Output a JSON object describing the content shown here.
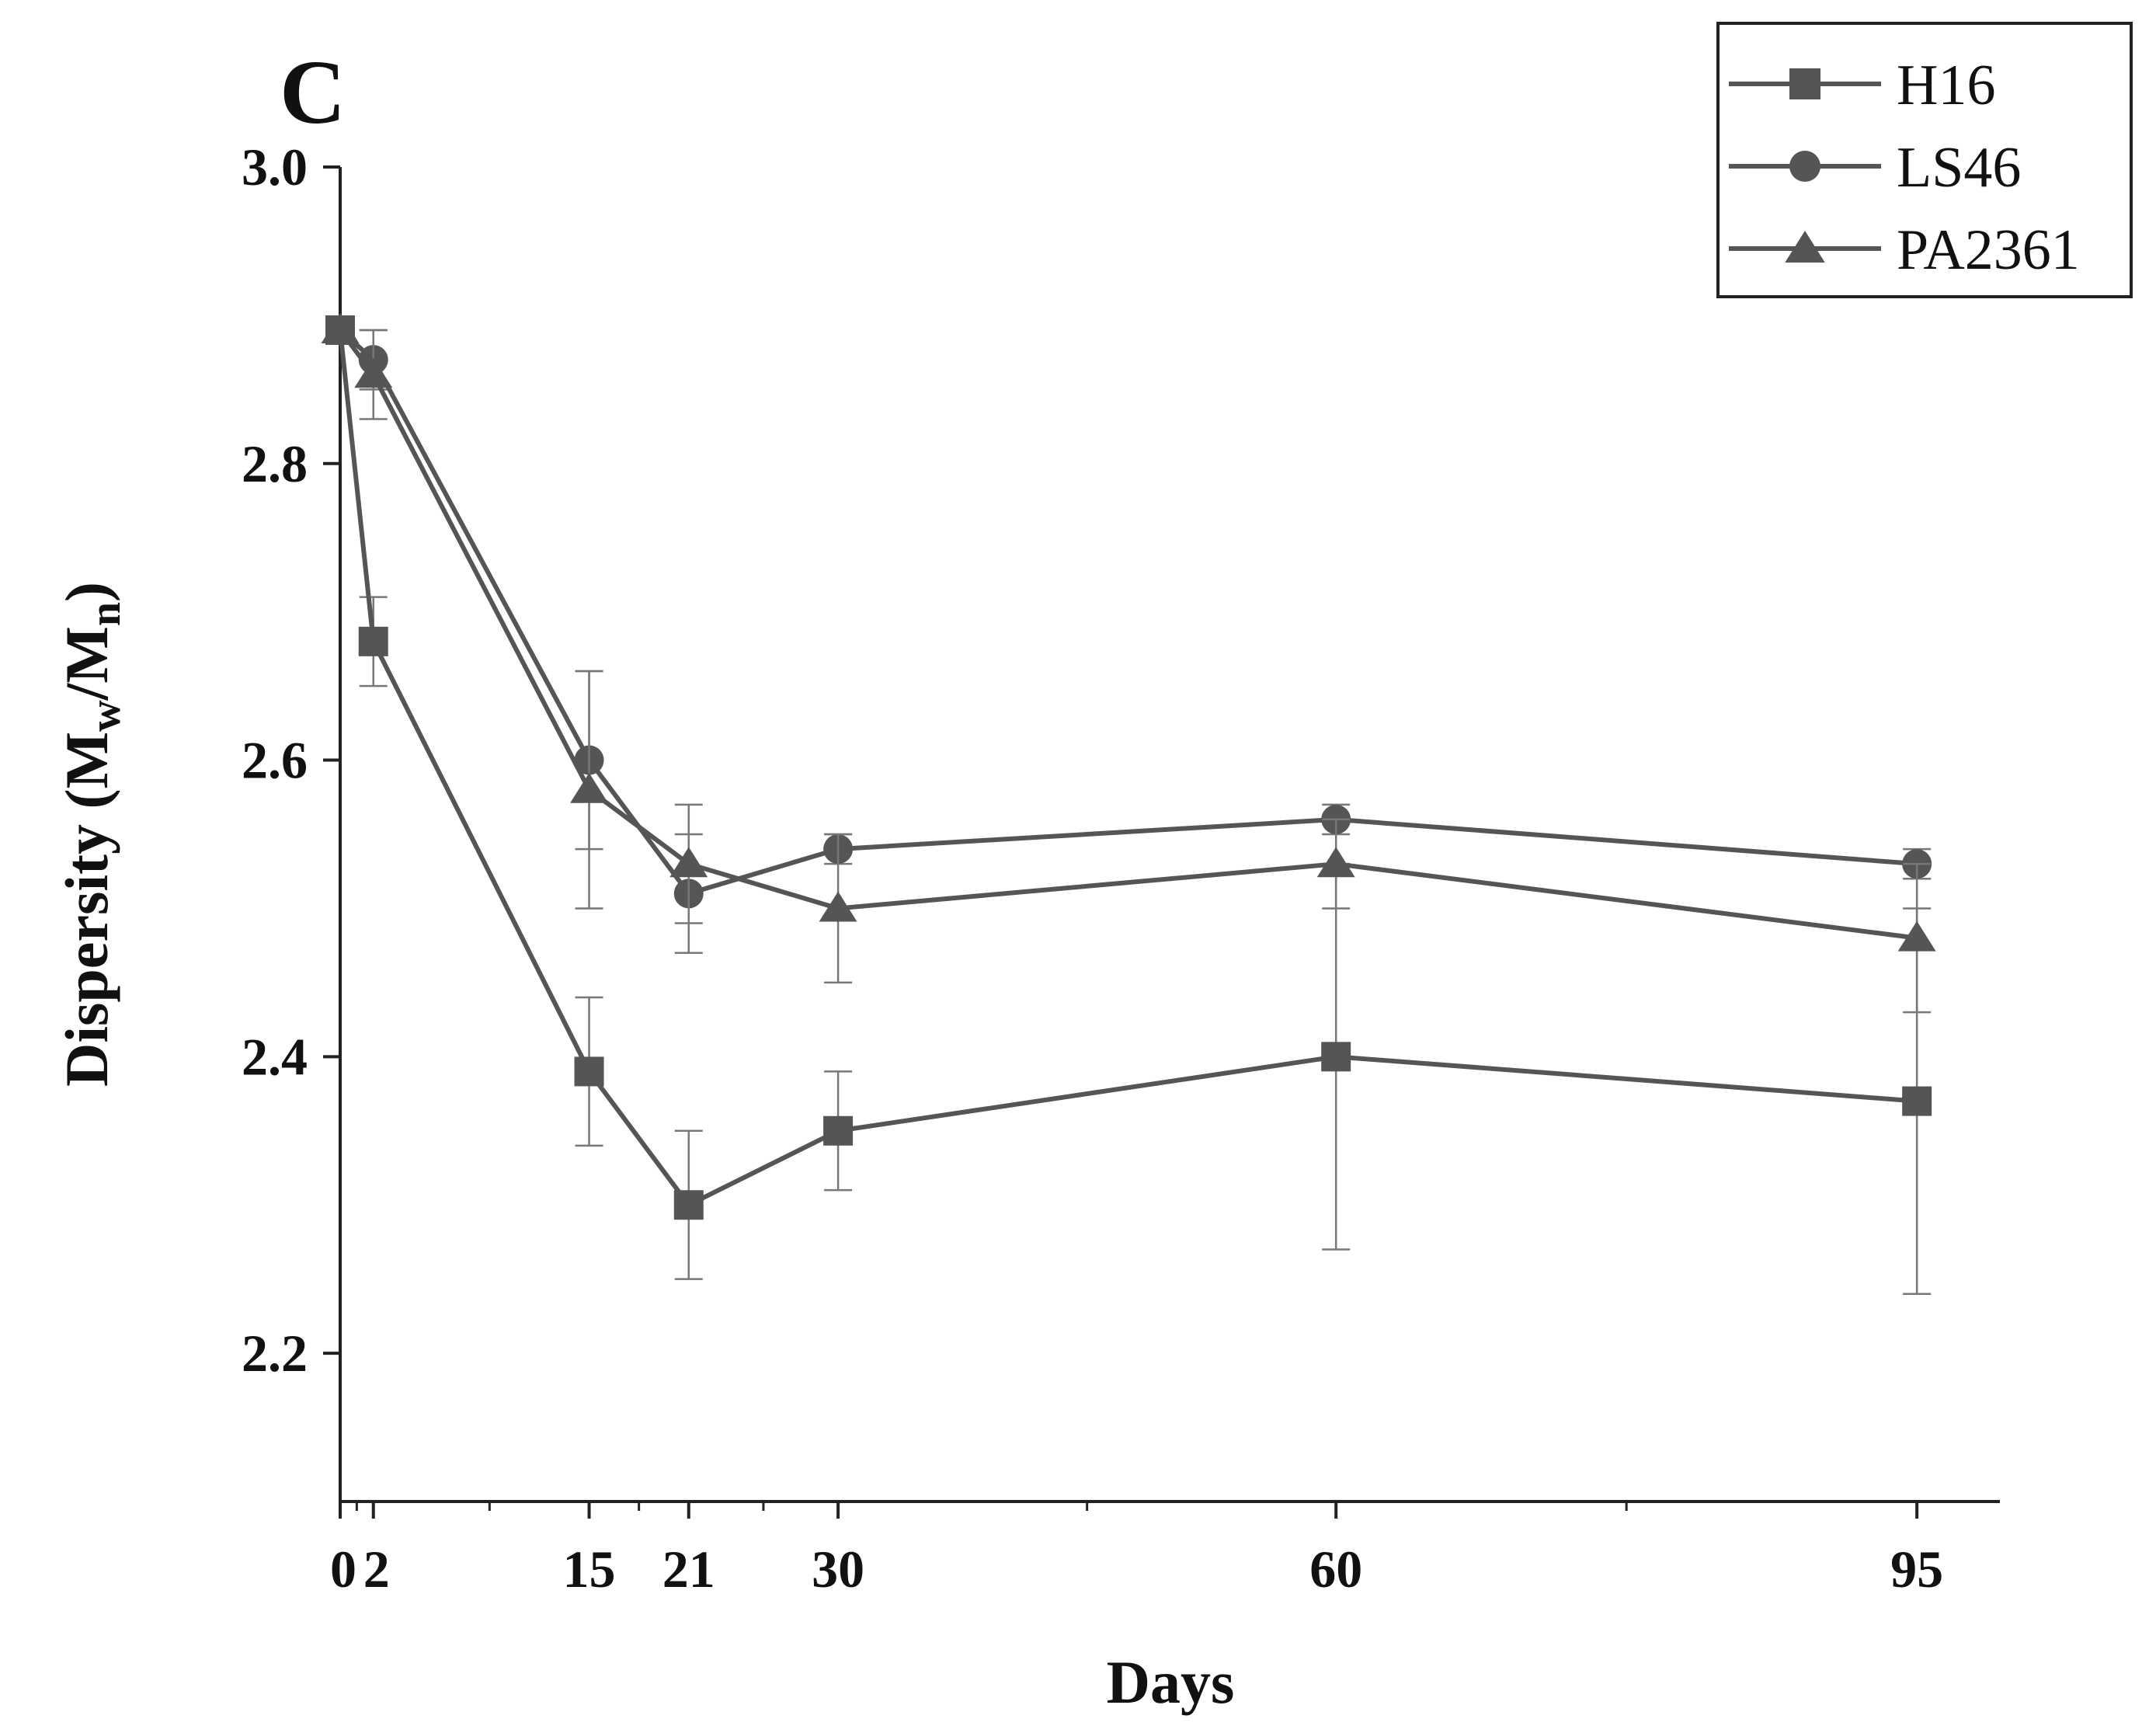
{
  "chart_data": {
    "type": "line",
    "panel_label": "C",
    "title": "",
    "xlabel": "Days",
    "ylabel": {
      "prefix": "Dispersity (M",
      "sub1": "w",
      "mid": "/M",
      "sub2": "n",
      "suffix": ")"
    },
    "xlim": [
      0,
      100
    ],
    "ylim": [
      2.1,
      3.0
    ],
    "x_ticks": [
      0,
      2,
      15,
      21,
      30,
      60,
      95
    ],
    "x_tick_labels": [
      "0",
      "2",
      "15",
      "21",
      "30",
      "60",
      "95"
    ],
    "x_minor_ticks": [
      1,
      9,
      18,
      25.5,
      45,
      77.5
    ],
    "y_ticks": [
      2.2,
      2.4,
      2.6,
      2.8,
      3.0
    ],
    "y_tick_labels": [
      "2.2",
      "2.4",
      "2.6",
      "2.8",
      "3.0"
    ],
    "grid": false,
    "legend_position": "top-right",
    "series": [
      {
        "name": "H16",
        "marker": "square",
        "color": "#555555",
        "x": [
          0,
          2,
          15,
          21,
          30,
          60,
          95
        ],
        "values": [
          2.89,
          2.68,
          2.39,
          2.3,
          2.35,
          2.4,
          2.37
        ],
        "errors": [
          0.0,
          0.03,
          0.05,
          0.05,
          0.04,
          0.13,
          0.13
        ]
      },
      {
        "name": "LS46",
        "marker": "circle",
        "color": "#555555",
        "x": [
          0,
          2,
          15,
          21,
          30,
          60,
          95
        ],
        "values": [
          2.89,
          2.87,
          2.6,
          2.51,
          2.54,
          2.56,
          2.53
        ],
        "errors": [
          0.0,
          0.02,
          0.06,
          0.04,
          0.01,
          0.01,
          0.01
        ]
      },
      {
        "name": "PA2361",
        "marker": "triangle",
        "color": "#555555",
        "x": [
          0,
          2,
          15,
          21,
          30,
          60,
          95
        ],
        "values": [
          2.89,
          2.86,
          2.58,
          2.53,
          2.5,
          2.53,
          2.48
        ],
        "errors": [
          0.0,
          0.03,
          0.08,
          0.04,
          0.05,
          0.03,
          0.05
        ]
      }
    ]
  }
}
